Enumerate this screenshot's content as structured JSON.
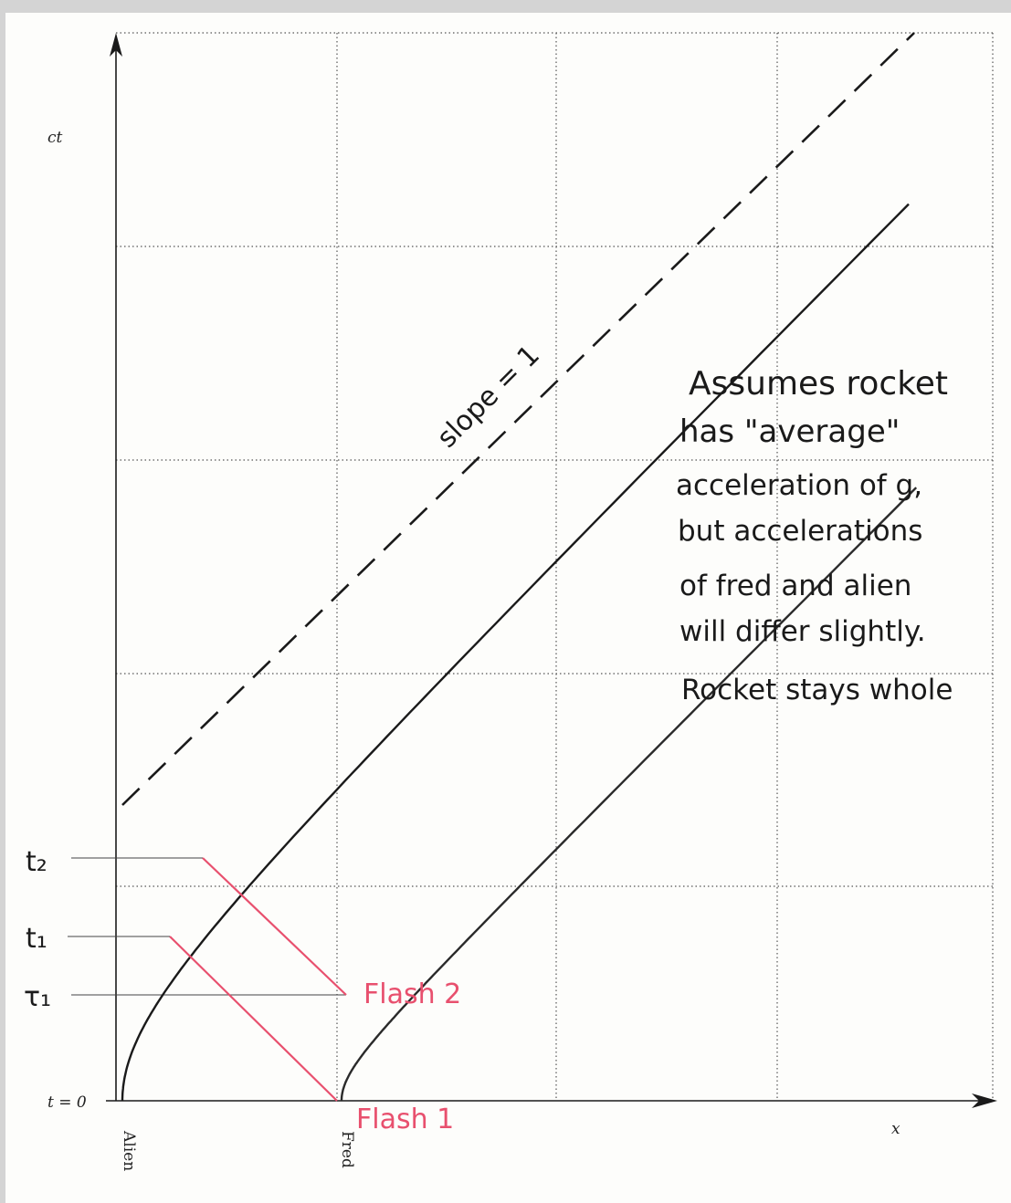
{
  "axes": {
    "ct_label": "ct",
    "x_label": "x",
    "t0_label": "t = 0",
    "alien_label": "Alien",
    "fred_label": "Fred"
  },
  "time_marks": {
    "t2": "t₂",
    "t1": "t₁",
    "tau1": "τ₁"
  },
  "flashes": {
    "flash1": "Flash 1",
    "flash2": "Flash 2"
  },
  "asymptote_label": "slope = 1",
  "note_lines": [
    "Assumes rocket",
    "has \"average\"",
    "acceleration of g,",
    "but accelerations",
    "of fred and alien",
    "will differ slightly.",
    "Rocket stays whole"
  ],
  "colors": {
    "ink": "#1a1a1a",
    "flash": "#e8506e",
    "grid": "#555555",
    "background": "#fdfdfb"
  }
}
